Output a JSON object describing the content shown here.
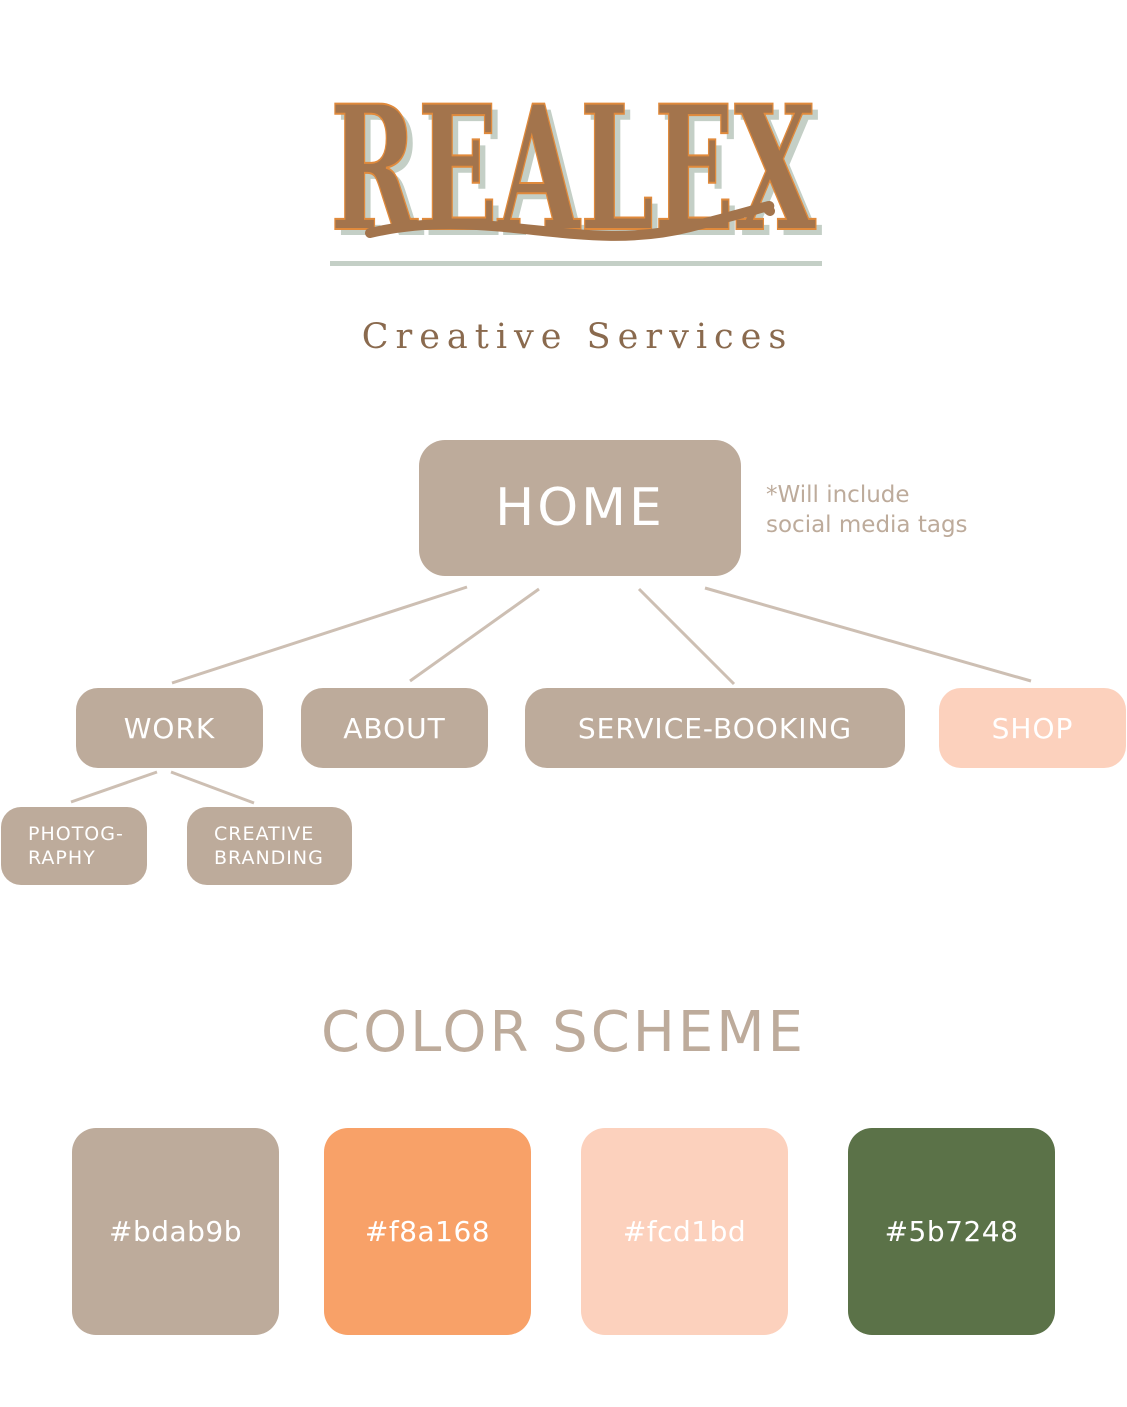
{
  "logo": {
    "wordmark": "REALEX",
    "subtitle": "Creative Services",
    "colors": {
      "letters": "#a3744c",
      "outline": "#e08a3c",
      "shadow": "#c4cfc6"
    }
  },
  "sitemap": {
    "home": "HOME",
    "note": "*Will include\nsocial media tags",
    "level1": [
      {
        "label": "WORK"
      },
      {
        "label": "ABOUT"
      },
      {
        "label": "SERVICE-BOOKING"
      },
      {
        "label": "SHOP"
      }
    ],
    "work_children": [
      {
        "label": "PHOTOG-\nRAPHY"
      },
      {
        "label": "CREATIVE\nBRANDING"
      }
    ],
    "colors": {
      "node": "#bdab9b",
      "shop_node": "#fcd1bd",
      "connector": "#cdbfb3"
    }
  },
  "color_scheme": {
    "title": "COLOR SCHEME",
    "swatches": [
      {
        "hex": "#bdab9b",
        "label": "#bdab9b"
      },
      {
        "hex": "#f8a168",
        "label": "#f8a168"
      },
      {
        "hex": "#fcd1bd",
        "label": "#fcd1bd"
      },
      {
        "hex": "#5b7248",
        "label": "#5b7248"
      }
    ]
  }
}
